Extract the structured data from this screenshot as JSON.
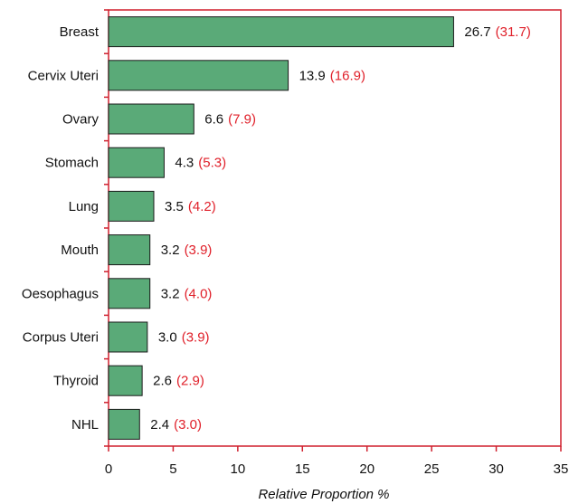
{
  "chart_data": {
    "type": "bar",
    "orientation": "horizontal",
    "categories": [
      "Breast",
      "Cervix Uteri",
      "Ovary",
      "Stomach",
      "Lung",
      "Mouth",
      "Oesophagus",
      "Corpus Uteri",
      "Thyroid",
      "NHL"
    ],
    "values": [
      26.7,
      13.9,
      6.6,
      4.3,
      3.5,
      3.2,
      3.2,
      3.0,
      2.6,
      2.4
    ],
    "secondary_values": [
      31.7,
      16.9,
      7.9,
      5.3,
      4.2,
      3.9,
      4.0,
      3.9,
      2.9,
      3.0
    ],
    "value_labels": [
      "26.7",
      "13.9",
      "6.6",
      "4.3",
      "3.5",
      "3.2",
      "3.2",
      "3.0",
      "2.6",
      "2.4"
    ],
    "secondary_labels": [
      "(31.7)",
      "(16.9)",
      "(7.9)",
      "(5.3)",
      "(4.2)",
      "(3.9)",
      "(4.0)",
      "(3.9)",
      "(2.9)",
      "(3.0)"
    ],
    "title": "",
    "xlabel": "Relative Proportion %",
    "ylabel": "",
    "xlim": [
      0,
      35
    ],
    "xticks": [
      "0",
      "5",
      "10",
      "15",
      "20",
      "25",
      "30",
      "35"
    ],
    "grid": false,
    "legend": "none",
    "colors": {
      "bar": "#5aaa78",
      "bar_stroke": "#1a1a1a",
      "frame": "#d0202e",
      "secondary_text": "#e0202a"
    }
  }
}
